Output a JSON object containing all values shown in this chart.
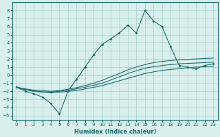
{
  "xlabel": "Humidex (Indice chaleur)",
  "background_color": "#d8efed",
  "grid_color": "#afd4d0",
  "line_color": "#1a6b6b",
  "x_data": [
    0,
    1,
    2,
    3,
    4,
    5,
    6,
    7,
    8,
    9,
    10,
    11,
    12,
    13,
    14,
    15,
    16,
    17,
    18,
    19,
    20,
    21,
    22,
    23
  ],
  "y_main": [
    -1.5,
    -2.0,
    -2.3,
    -2.7,
    -3.5,
    -4.8,
    -2.0,
    -0.5,
    1.0,
    2.5,
    3.8,
    4.5,
    5.2,
    6.2,
    5.2,
    8.0,
    6.7,
    6.0,
    3.5,
    1.2,
    1.0,
    0.8,
    1.2,
    1.4
  ],
  "y_band1": [
    -1.5,
    -1.8,
    -2.0,
    -2.1,
    -2.2,
    -2.1,
    -2.0,
    -1.9,
    -1.7,
    -1.5,
    -1.3,
    -1.0,
    -0.7,
    -0.4,
    -0.1,
    0.2,
    0.4,
    0.6,
    0.7,
    0.8,
    0.9,
    1.0,
    1.05,
    1.1
  ],
  "y_band2": [
    -1.5,
    -1.75,
    -1.95,
    -2.05,
    -2.1,
    -2.0,
    -1.85,
    -1.7,
    -1.5,
    -1.25,
    -1.0,
    -0.6,
    -0.2,
    0.2,
    0.55,
    0.85,
    1.05,
    1.2,
    1.3,
    1.4,
    1.45,
    1.5,
    1.55,
    1.6
  ],
  "y_band3": [
    -1.5,
    -1.7,
    -1.85,
    -1.9,
    -2.0,
    -1.9,
    -1.75,
    -1.55,
    -1.3,
    -1.0,
    -0.65,
    -0.2,
    0.2,
    0.65,
    1.0,
    1.3,
    1.55,
    1.7,
    1.8,
    1.9,
    1.95,
    2.0,
    2.05,
    2.1
  ],
  "ylim": [
    -5.5,
    9.0
  ],
  "xlim": [
    -0.5,
    23.5
  ],
  "yticks": [
    -5,
    -4,
    -3,
    -2,
    -1,
    0,
    1,
    2,
    3,
    4,
    5,
    6,
    7,
    8
  ],
  "xticks": [
    0,
    1,
    2,
    3,
    4,
    5,
    6,
    7,
    8,
    9,
    10,
    11,
    12,
    13,
    14,
    15,
    16,
    17,
    18,
    19,
    20,
    21,
    22,
    23
  ]
}
